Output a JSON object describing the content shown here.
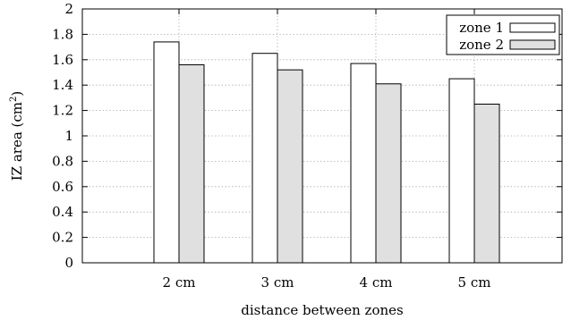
{
  "chart_data": {
    "type": "bar",
    "categories": [
      "2 cm",
      "3 cm",
      "4 cm",
      "5 cm"
    ],
    "series": [
      {
        "name": "zone 1",
        "values": [
          1.74,
          1.65,
          1.57,
          1.45
        ],
        "color": "#ffffff"
      },
      {
        "name": "zone 2",
        "values": [
          1.56,
          1.52,
          1.41,
          1.25
        ],
        "color": "#e0e0e0"
      }
    ],
    "xlabel": "distance between zones",
    "ylabel": "IZ area (cm",
    "ylabel_superscript": "2",
    "ylabel_suffix": ")",
    "ylim": [
      0,
      2
    ],
    "yticks": [
      "0",
      "0.2",
      "0.4",
      "0.6",
      "0.8",
      "1",
      "1.2",
      "1.4",
      "1.6",
      "1.8",
      "2"
    ],
    "grid": true,
    "legend_position": "top-right"
  }
}
